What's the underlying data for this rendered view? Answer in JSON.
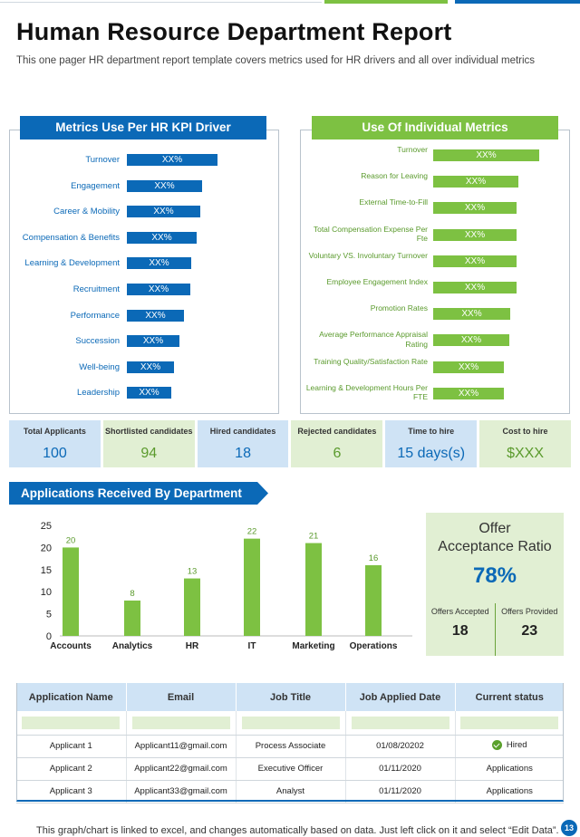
{
  "colors": {
    "blue": "#0b69b7",
    "green": "#7dc142",
    "light_blue": "#cfe3f5",
    "light_green": "#e1efd3"
  },
  "header": {
    "title": "Human Resource Department Report",
    "subtitle": "This one pager HR department report template covers metrics used for HR drivers  and all over individual  metrics"
  },
  "kpi_driver": {
    "title": "Metrics Use Per HR KPI Driver",
    "items": [
      {
        "label": "Turnover",
        "value": "XX%",
        "fraction": 1.0
      },
      {
        "label": "Engagement",
        "value": "XX%",
        "fraction": 0.83
      },
      {
        "label": "Career & Mobility",
        "value": "XX%",
        "fraction": 0.81
      },
      {
        "label": "Compensation & Benefits",
        "value": "XX%",
        "fraction": 0.77
      },
      {
        "label": "Learning & Development",
        "value": "XX%",
        "fraction": 0.71
      },
      {
        "label": "Recruitment",
        "value": "XX%",
        "fraction": 0.7
      },
      {
        "label": "Performance",
        "value": "XX%",
        "fraction": 0.63
      },
      {
        "label": "Succession",
        "value": "XX%",
        "fraction": 0.58
      },
      {
        "label": "Well-being",
        "value": "XX%",
        "fraction": 0.52
      },
      {
        "label": "Leadership",
        "value": "XX%",
        "fraction": 0.49
      }
    ]
  },
  "individual_metrics": {
    "title": "Use Of Individual Metrics",
    "items": [
      {
        "label": "Turnover",
        "value": "XX%",
        "fraction": 1.0
      },
      {
        "label": "Reason for Leaving",
        "value": "XX%",
        "fraction": 0.8
      },
      {
        "label": "External Time-to-Fill",
        "value": "XX%",
        "fraction": 0.79
      },
      {
        "label": "Total Compensation Expense Per Fte",
        "value": "XX%",
        "fraction": 0.79
      },
      {
        "label": "Voluntary VS. Involuntary Turnover",
        "value": "XX%",
        "fraction": 0.79
      },
      {
        "label": "Employee Engagement Index",
        "value": "XX%",
        "fraction": 0.79
      },
      {
        "label": "Promotion Rates",
        "value": "XX%",
        "fraction": 0.73
      },
      {
        "label": "Average Performance Appraisal Rating",
        "value": "XX%",
        "fraction": 0.72
      },
      {
        "label": "Training Quality/Satisfaction Rate",
        "value": "XX%",
        "fraction": 0.67
      },
      {
        "label": "Learning & Development Hours Per FTE",
        "value": "XX%",
        "fraction": 0.67
      }
    ]
  },
  "kpis": [
    {
      "label": "Total Applicants",
      "value": "100",
      "tone": "b"
    },
    {
      "label": "Shortlisted candidates",
      "value": "94",
      "tone": "g"
    },
    {
      "label": "Hired candidates",
      "value": "18",
      "tone": "b"
    },
    {
      "label": "Rejected candidates",
      "value": "6",
      "tone": "g"
    },
    {
      "label": "Time to hire",
      "value": "15 days(s)",
      "tone": "b"
    },
    {
      "label": "Cost to hire",
      "value": "$XXX",
      "tone": "g"
    }
  ],
  "applications_section": {
    "title": "Applications Received By Department"
  },
  "chart_data": {
    "type": "bar",
    "title": "",
    "categories": [
      "Accounts",
      "Analytics",
      "HR",
      "IT",
      "Marketing",
      "Operations"
    ],
    "values": [
      20,
      8,
      13,
      22,
      21,
      16
    ],
    "ylim": [
      0,
      25
    ],
    "yticks": [
      0,
      5,
      10,
      15,
      20,
      25
    ],
    "xlabel": "",
    "ylabel": "",
    "grid": false,
    "data_labels": true,
    "bar_color": "#7dc142"
  },
  "offer": {
    "title_line1": "Offer",
    "title_line2": "Acceptance Ratio",
    "ratio": "78%",
    "accepted_label": "Offers Accepted",
    "accepted_value": "18",
    "provided_label": "Offers Provided",
    "provided_value": "23"
  },
  "table": {
    "headers": [
      "Application Name",
      "Email",
      "Job Title",
      "Job Applied Date",
      "Current status"
    ],
    "rows": [
      [
        "Applicant 1",
        "Applicant11@gmail.com",
        "Process Associate",
        "01/08/20202",
        "Hired"
      ],
      [
        "Applicant 2",
        "Applicant22@gmail.com",
        "Executive Officer",
        "01/11/2020",
        "Applications"
      ],
      [
        "Applicant 3",
        "Applicant33@gmail.com",
        "Analyst",
        "01/11/2020",
        "Applications"
      ]
    ],
    "hired_icon": "check-circle-icon"
  },
  "footer": {
    "note": "This graph/chart is linked to excel,  and changes automatically based on data. Just left click on it and select “Edit Data”.",
    "page": "13"
  }
}
